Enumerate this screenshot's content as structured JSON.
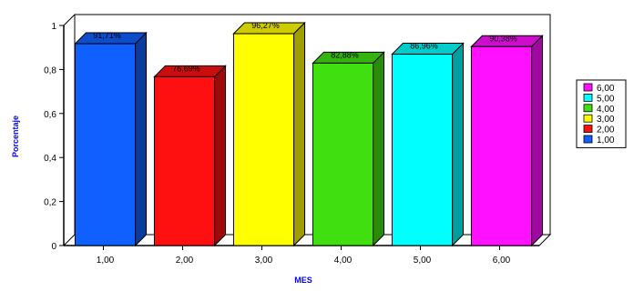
{
  "chart_data": {
    "type": "bar",
    "title": "",
    "xlabel": "MES",
    "ylabel": "Porcentaje",
    "ylim": [
      0,
      1
    ],
    "yticks": [
      "0",
      "0,2",
      "0,4",
      "0,6",
      "0,8",
      "1"
    ],
    "grid": false,
    "legend_position": "right",
    "categories": [
      "1,00",
      "2,00",
      "3,00",
      "4,00",
      "5,00",
      "6,00"
    ],
    "values": [
      0.9171,
      0.7669,
      0.9627,
      0.8288,
      0.8696,
      0.9038
    ],
    "data_labels": [
      "91,71%",
      "76,69%",
      "96,27%",
      "82,88%",
      "86,96%",
      "90,38%"
    ],
    "colors": [
      "#1060ff",
      "#ff1010",
      "#ffff00",
      "#40e010",
      "#00ffff",
      "#ff10ff"
    ],
    "legend": [
      "6,00",
      "5,00",
      "4,00",
      "3,00",
      "2,00",
      "1,00"
    ]
  }
}
